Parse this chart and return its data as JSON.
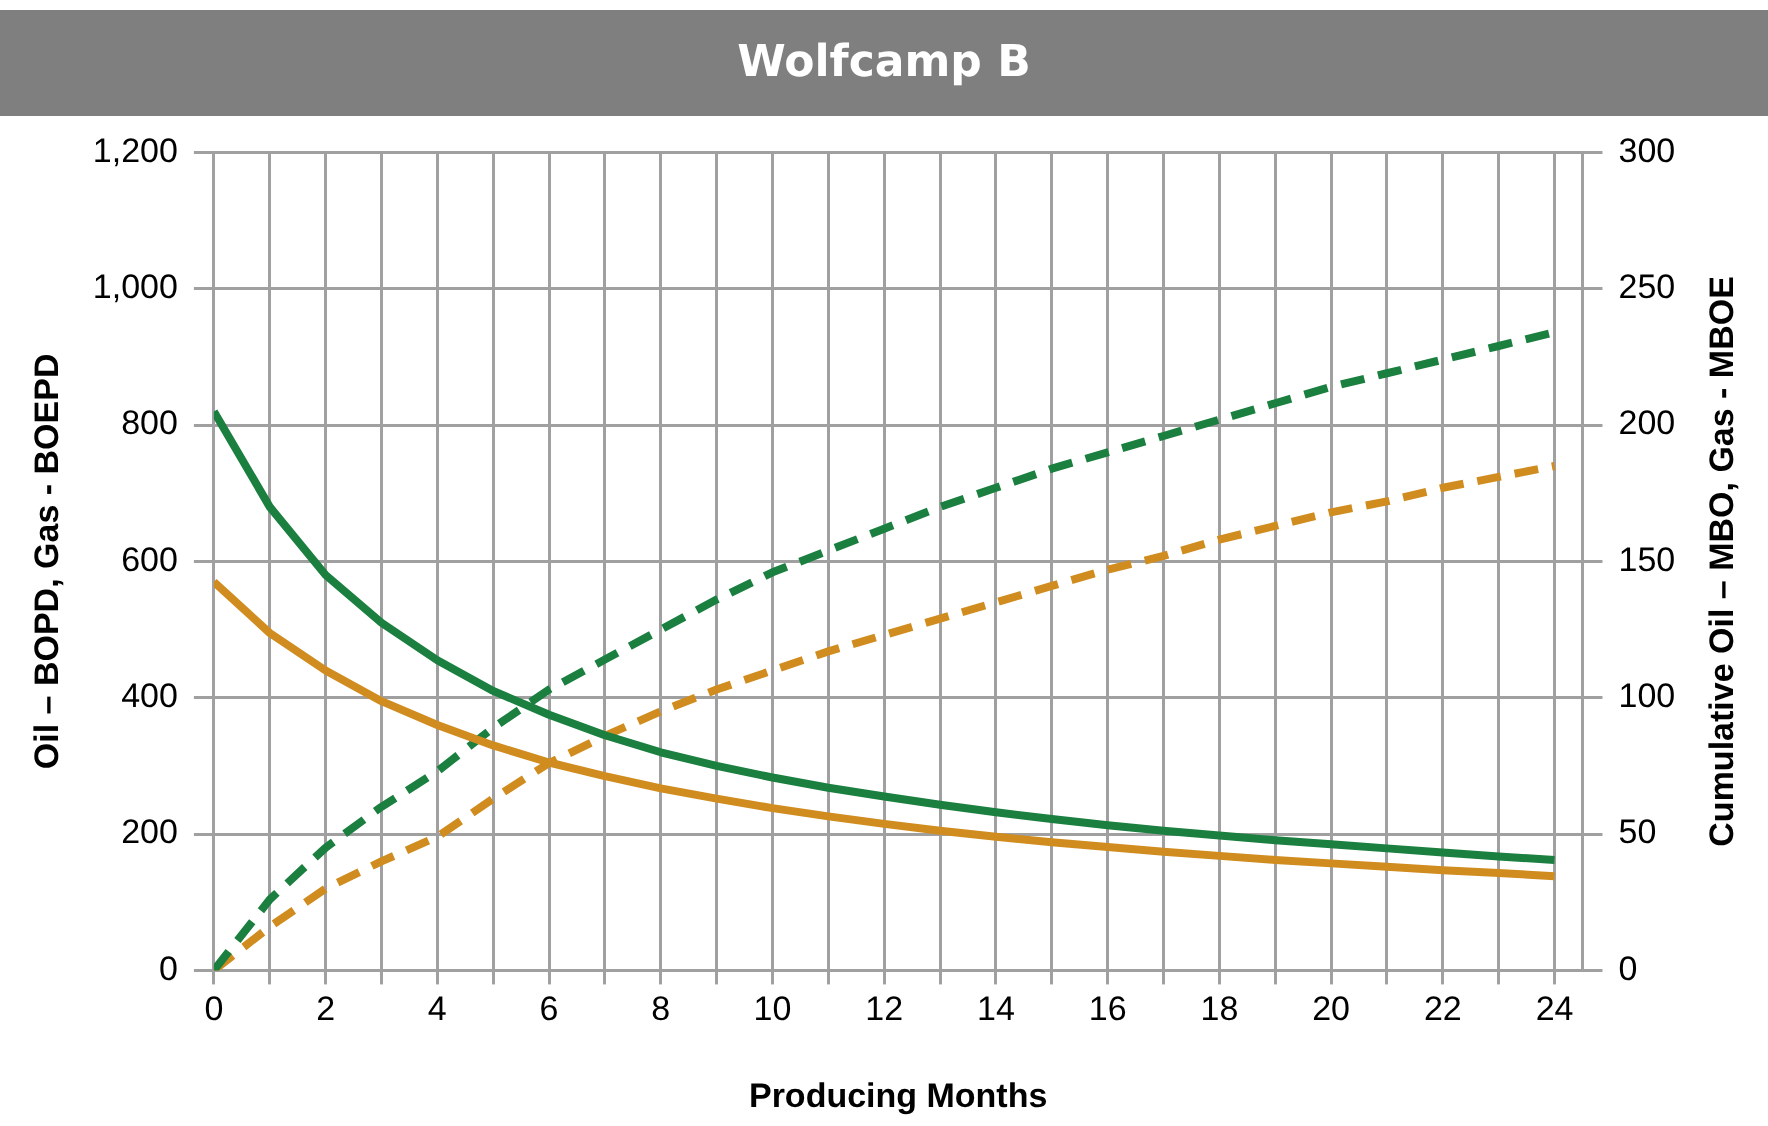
{
  "chart_data": {
    "type": "line",
    "title": "Wolfcamp B",
    "xlabel": "Producing Months",
    "ylabel": "Oil – BOPD, Gas - BOEPD",
    "y2label": "Cumulative Oil – MBO, Gas - MBOE",
    "x": [
      0,
      1,
      2,
      3,
      4,
      5,
      6,
      7,
      8,
      9,
      10,
      11,
      12,
      13,
      14,
      15,
      16,
      17,
      18,
      19,
      20,
      21,
      22,
      23,
      24
    ],
    "series": [
      {
        "color": "#1a7f3f",
        "line_style": "solid",
        "values": [
          820,
          680,
          580,
          510,
          455,
          410,
          375,
          345,
          320,
          300,
          283,
          268,
          255,
          243,
          232,
          222,
          213,
          205,
          198,
          191,
          185,
          179,
          173,
          167,
          162
        ]
      },
      {
        "color": "#d08c1e",
        "line_style": "solid",
        "values": [
          570,
          495,
          440,
          395,
          360,
          330,
          305,
          285,
          267,
          252,
          238,
          226,
          215,
          205,
          196,
          188,
          181,
          174,
          168,
          162,
          157,
          152,
          147,
          143,
          138
        ]
      },
      {
        "color": "#1a7f3f",
        "line_style": "dashed",
        "axis": "y2",
        "values": [
          0,
          26,
          45,
          60,
          73,
          89,
          103,
          114,
          125,
          136,
          146,
          154,
          162,
          170,
          177,
          184,
          190,
          196,
          202,
          208,
          214,
          219,
          224,
          229,
          234
        ]
      },
      {
        "color": "#d08c1e",
        "line_style": "dashed",
        "axis": "y2",
        "values": [
          0,
          16,
          30,
          40,
          49,
          63,
          76,
          86,
          95,
          103,
          110,
          117,
          123,
          129,
          135,
          141,
          147,
          152,
          158,
          163,
          168,
          172,
          177,
          181,
          185
        ]
      }
    ],
    "xlim": [
      0,
      24.5
    ],
    "xticks": [
      0,
      {
        "value": 1,
        "label": null
      },
      2,
      {
        "value": 3,
        "label": null
      },
      4,
      {
        "value": 5,
        "label": null
      },
      6,
      {
        "value": 7,
        "label": null
      },
      8,
      {
        "value": 9,
        "label": null
      },
      10,
      {
        "value": 11,
        "label": null
      },
      12,
      {
        "value": 13,
        "label": null
      },
      14,
      {
        "value": 15,
        "label": null
      },
      16,
      {
        "value": 17,
        "label": null
      },
      18,
      {
        "value": 19,
        "label": null
      },
      20,
      {
        "value": 21,
        "label": null
      },
      22,
      {
        "value": 23,
        "label": null
      },
      24
    ],
    "ylim": [
      0,
      1200
    ],
    "yticks": [
      0,
      200,
      400,
      600,
      800,
      {
        "value": 1000,
        "label": "1,000"
      },
      {
        "value": 1200,
        "label": "1,200"
      }
    ],
    "y2lim": [
      0,
      300
    ],
    "y2ticks": [
      0,
      50,
      100,
      150,
      200,
      250,
      300
    ],
    "grid": true,
    "marker": "none",
    "legend": false
  }
}
